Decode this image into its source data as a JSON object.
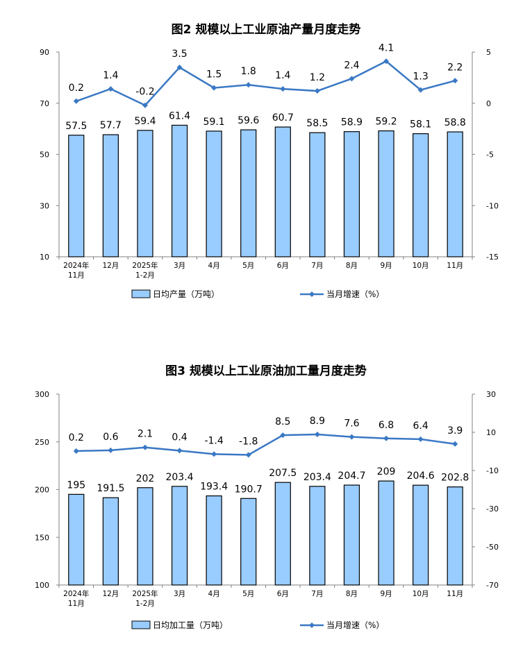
{
  "chart_data": [
    {
      "type": "bar",
      "title": "图2  规模以上工业原油产量月度走势",
      "categories": [
        [
          "2024年",
          "11月"
        ],
        [
          "12月"
        ],
        [
          "2025年",
          "1-2月"
        ],
        [
          "3月"
        ],
        [
          "4月"
        ],
        [
          "5月"
        ],
        [
          "6月"
        ],
        [
          "7月"
        ],
        [
          "8月"
        ],
        [
          "9月"
        ],
        [
          "10月"
        ],
        [
          "11月"
        ]
      ],
      "series": [
        {
          "name": "日均产量（万吨）",
          "type": "bar",
          "axis": "left",
          "values": [
            57.5,
            57.7,
            59.4,
            61.4,
            59.1,
            59.6,
            60.7,
            58.5,
            58.9,
            59.2,
            58.1,
            58.8
          ]
        },
        {
          "name": "当月增速（%）",
          "type": "line",
          "axis": "right",
          "values": [
            0.2,
            1.4,
            -0.2,
            3.5,
            1.5,
            1.8,
            1.4,
            1.2,
            2.4,
            4.1,
            1.3,
            2.2
          ]
        }
      ],
      "ylim": [
        10,
        90
      ],
      "yticks": [
        10,
        30,
        50,
        70,
        90
      ],
      "y2lim": [
        -15,
        5
      ],
      "y2ticks": [
        -15,
        -10,
        -5,
        0,
        5
      ],
      "legend": "bottom",
      "grid": false
    },
    {
      "type": "bar",
      "title": "图3  规模以上工业原油加工量月度走势",
      "categories": [
        [
          "2024年",
          "11月"
        ],
        [
          "12月"
        ],
        [
          "2025年",
          "1-2月"
        ],
        [
          "3月"
        ],
        [
          "4月"
        ],
        [
          "5月"
        ],
        [
          "6月"
        ],
        [
          "7月"
        ],
        [
          "8月"
        ],
        [
          "9月"
        ],
        [
          "10月"
        ],
        [
          "11月"
        ]
      ],
      "series": [
        {
          "name": "日均加工量（万吨）",
          "type": "bar",
          "axis": "left",
          "values": [
            195.0,
            191.5,
            202.0,
            203.4,
            193.4,
            190.7,
            207.5,
            203.4,
            204.7,
            209.0,
            204.6,
            202.8
          ]
        },
        {
          "name": "当月增速（%）",
          "type": "line",
          "axis": "right",
          "values": [
            0.2,
            0.6,
            2.1,
            0.4,
            -1.4,
            -1.8,
            8.5,
            8.9,
            7.6,
            6.8,
            6.4,
            3.9
          ]
        }
      ],
      "ylim": [
        100,
        300
      ],
      "yticks": [
        100,
        150,
        200,
        250,
        300
      ],
      "y2lim": [
        -70,
        30
      ],
      "y2ticks": [
        -70,
        -50,
        -30,
        -10,
        10,
        30
      ],
      "legend": "bottom",
      "grid": false
    }
  ],
  "colors": {
    "bar_fill": "#99ccff",
    "bar_stroke": "#000000",
    "line": "#3a78c4",
    "axis": "#808080"
  }
}
